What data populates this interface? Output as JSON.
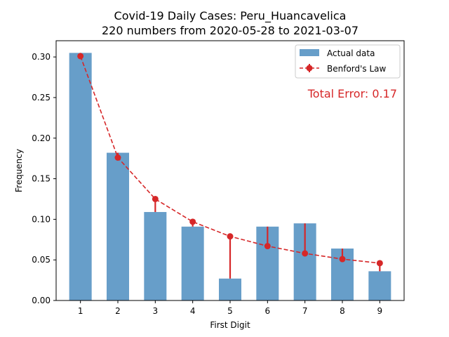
{
  "chart_data": {
    "type": "bar",
    "title_line1": "Covid-19 Daily Cases: Peru_Huancavelica",
    "title_line2": "220 numbers from 2020-05-28 to 2021-03-07",
    "xlabel": "First Digit",
    "ylabel": "Frequency",
    "categories": [
      "1",
      "2",
      "3",
      "4",
      "5",
      "6",
      "7",
      "8",
      "9"
    ],
    "ylim": [
      0,
      0.32
    ],
    "yticks": [
      "0.00",
      "0.05",
      "0.10",
      "0.15",
      "0.20",
      "0.25",
      "0.30"
    ],
    "series": [
      {
        "name": "Actual data",
        "type": "bar",
        "color": "#4c8dbf",
        "values": [
          0.305,
          0.182,
          0.109,
          0.091,
          0.027,
          0.091,
          0.095,
          0.064,
          0.036
        ]
      },
      {
        "name": "Benford's Law",
        "type": "line",
        "style": "dashed",
        "marker": "circle",
        "color": "#d62728",
        "values": [
          0.301,
          0.176,
          0.125,
          0.097,
          0.079,
          0.067,
          0.058,
          0.051,
          0.046
        ]
      }
    ],
    "legend": {
      "placement": "top-right",
      "entries": [
        "Actual data",
        "Benford's Law"
      ]
    },
    "annotation": "Total Error: 0.17",
    "grid": false
  }
}
